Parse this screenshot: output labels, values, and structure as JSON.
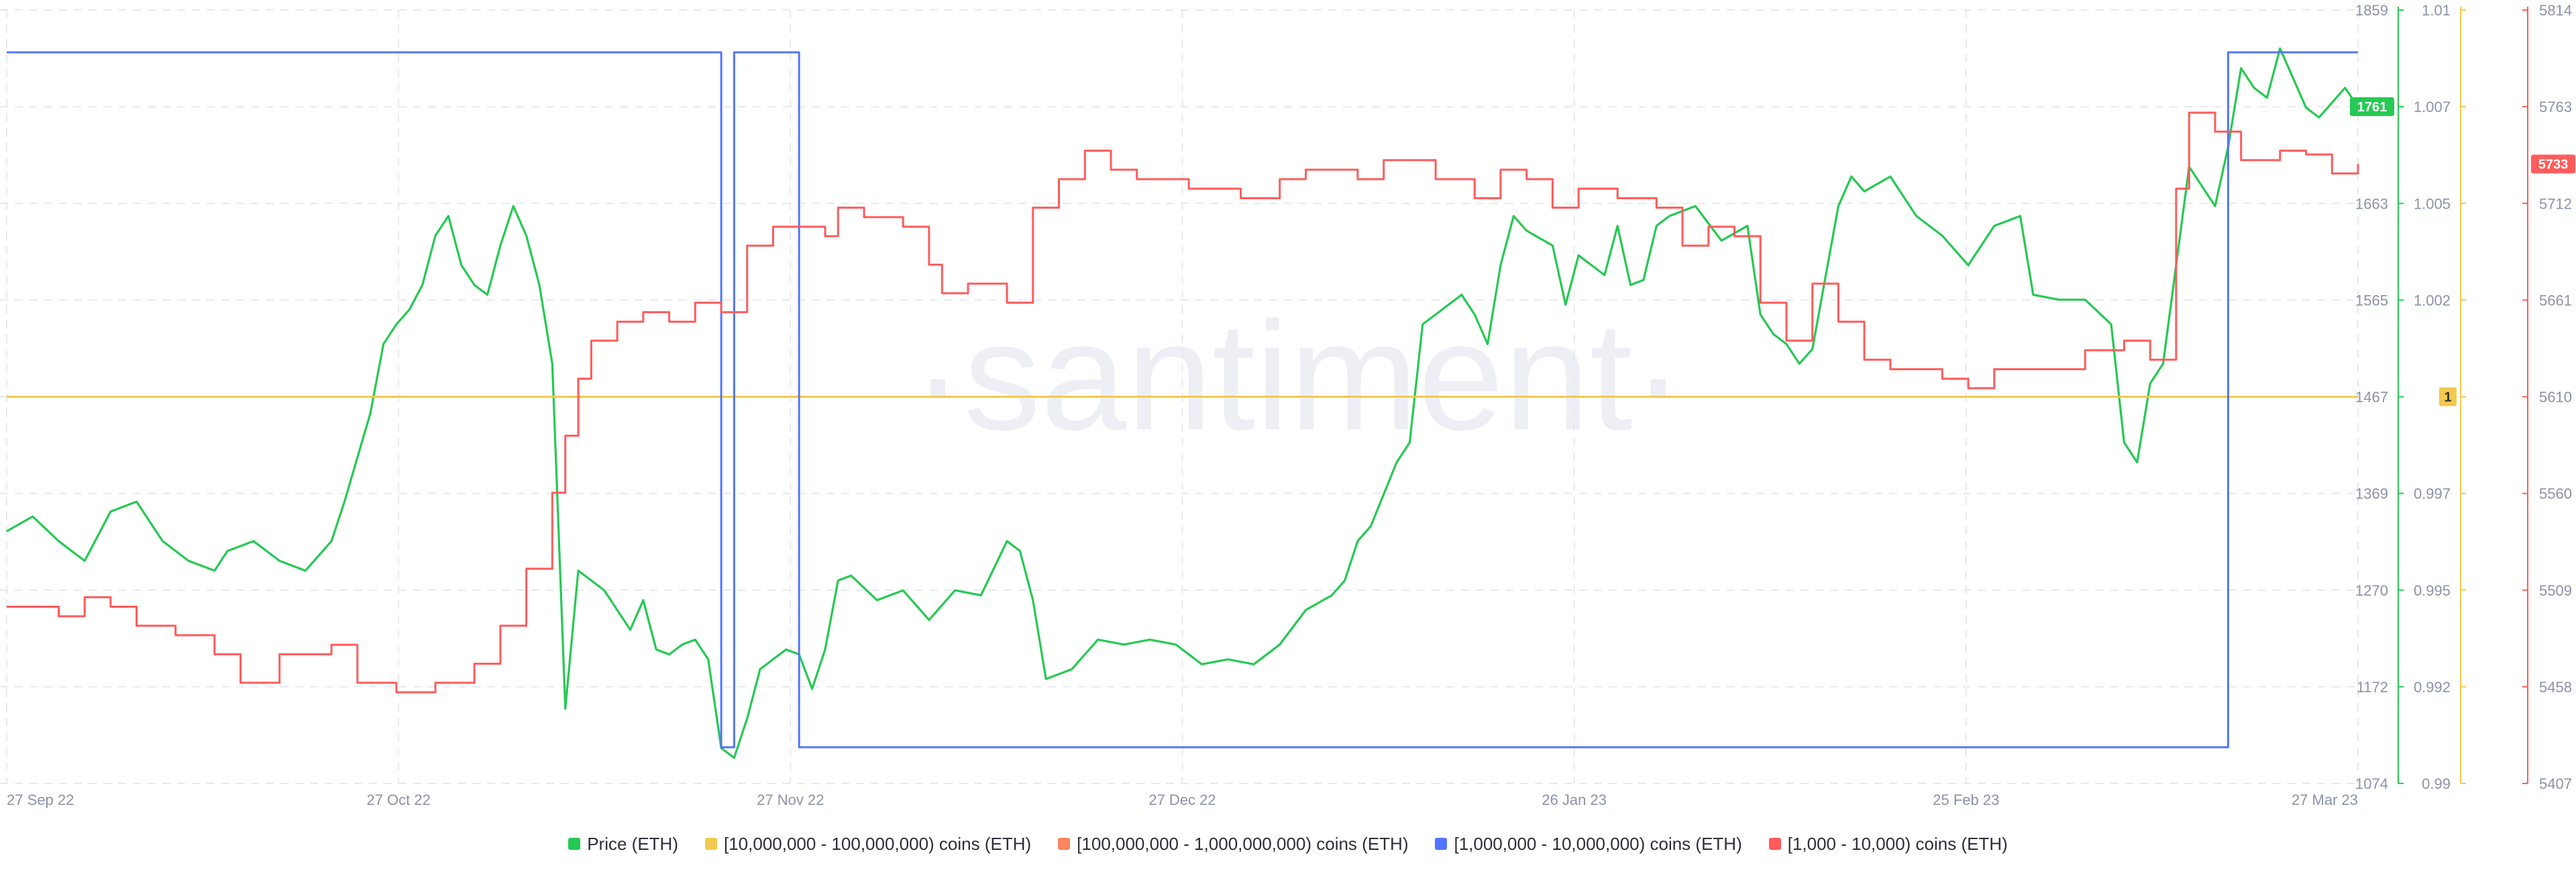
{
  "watermark": "·santiment·",
  "colors": {
    "price": "#26c953",
    "band_10m_100m": "#f2c94c",
    "band_100m_1b": "#f8865e",
    "band_1m_10m": "#5275ff",
    "band_1k_10k": "#ff5b5b",
    "grid": "#e7e9f0",
    "tick_text": "#8a93a8"
  },
  "chart_data": {
    "type": "line",
    "x_labels": [
      "27 Sep 22",
      "27 Oct 22",
      "27 Nov 22",
      "27 Dec 22",
      "26 Jan 23",
      "25 Feb 23",
      "27 Mar 23"
    ],
    "x_range": [
      "2022-09-27",
      "2023-03-27"
    ],
    "axes": {
      "price": {
        "ticks": [
          "1859",
          "1763",
          "1663",
          "1565",
          "1467",
          "1369",
          "1270",
          "1172",
          "1074"
        ],
        "range": [
          1074,
          1859
        ],
        "color": "#26c953"
      },
      "band_10m_100m": {
        "ticks": [
          "1.01",
          "1.007",
          "1.005",
          "1.002",
          "1",
          "0.997",
          "0.995",
          "0.992",
          "0.99"
        ],
        "range": [
          0.99,
          1.01
        ],
        "color": "#f2c94c"
      },
      "band_1k_10k": {
        "ticks": [
          "5814",
          "5763",
          "5712",
          "5661",
          "5610",
          "5560",
          "5509",
          "5458",
          "5407"
        ],
        "range": [
          5407,
          5814
        ],
        "color": "#ff5b5b"
      }
    },
    "badges": [
      {
        "series": "price",
        "value": "1761",
        "y": 1761
      },
      {
        "series": "band_10m_100m",
        "value": "1",
        "y": 1
      },
      {
        "series": "band_1k_10k",
        "value": "5733",
        "y": 5733
      }
    ],
    "series": [
      {
        "name": "Price (ETH)",
        "key": "price",
        "axis": "price",
        "step": false,
        "points": [
          [
            "2022-09-27",
            1330
          ],
          [
            "2022-09-29",
            1345
          ],
          [
            "2022-10-01",
            1320
          ],
          [
            "2022-10-03",
            1300
          ],
          [
            "2022-10-05",
            1350
          ],
          [
            "2022-10-07",
            1360
          ],
          [
            "2022-10-09",
            1320
          ],
          [
            "2022-10-11",
            1300
          ],
          [
            "2022-10-13",
            1290
          ],
          [
            "2022-10-14",
            1310
          ],
          [
            "2022-10-16",
            1320
          ],
          [
            "2022-10-18",
            1300
          ],
          [
            "2022-10-20",
            1290
          ],
          [
            "2022-10-22",
            1320
          ],
          [
            "2022-10-23",
            1360
          ],
          [
            "2022-10-25",
            1450
          ],
          [
            "2022-10-26",
            1520
          ],
          [
            "2022-10-27",
            1540
          ],
          [
            "2022-10-28",
            1555
          ],
          [
            "2022-10-29",
            1580
          ],
          [
            "2022-10-30",
            1630
          ],
          [
            "2022-10-31",
            1650
          ],
          [
            "2022-11-01",
            1600
          ],
          [
            "2022-11-02",
            1580
          ],
          [
            "2022-11-03",
            1570
          ],
          [
            "2022-11-04",
            1620
          ],
          [
            "2022-11-05",
            1660
          ],
          [
            "2022-11-06",
            1630
          ],
          [
            "2022-11-07",
            1580
          ],
          [
            "2022-11-08",
            1500
          ],
          [
            "2022-11-09",
            1150
          ],
          [
            "2022-11-10",
            1290
          ],
          [
            "2022-11-11",
            1280
          ],
          [
            "2022-11-12",
            1270
          ],
          [
            "2022-11-13",
            1250
          ],
          [
            "2022-11-14",
            1230
          ],
          [
            "2022-11-15",
            1260
          ],
          [
            "2022-11-16",
            1210
          ],
          [
            "2022-11-17",
            1205
          ],
          [
            "2022-11-18",
            1215
          ],
          [
            "2022-11-19",
            1220
          ],
          [
            "2022-11-20",
            1200
          ],
          [
            "2022-11-21",
            1110
          ],
          [
            "2022-11-22",
            1100
          ],
          [
            "2022-11-23",
            1140
          ],
          [
            "2022-11-24",
            1190
          ],
          [
            "2022-11-25",
            1200
          ],
          [
            "2022-11-26",
            1210
          ],
          [
            "2022-11-27",
            1205
          ],
          [
            "2022-11-28",
            1170
          ],
          [
            "2022-11-29",
            1210
          ],
          [
            "2022-11-30",
            1280
          ],
          [
            "2022-12-01",
            1285
          ],
          [
            "2022-12-03",
            1260
          ],
          [
            "2022-12-05",
            1270
          ],
          [
            "2022-12-07",
            1240
          ],
          [
            "2022-12-09",
            1270
          ],
          [
            "2022-12-11",
            1265
          ],
          [
            "2022-12-13",
            1320
          ],
          [
            "2022-12-14",
            1310
          ],
          [
            "2022-12-15",
            1260
          ],
          [
            "2022-12-16",
            1180
          ],
          [
            "2022-12-18",
            1190
          ],
          [
            "2022-12-20",
            1220
          ],
          [
            "2022-12-22",
            1215
          ],
          [
            "2022-12-24",
            1220
          ],
          [
            "2022-12-26",
            1215
          ],
          [
            "2022-12-28",
            1195
          ],
          [
            "2022-12-30",
            1200
          ],
          [
            "2023-01-01",
            1195
          ],
          [
            "2023-01-03",
            1215
          ],
          [
            "2023-01-05",
            1250
          ],
          [
            "2023-01-07",
            1265
          ],
          [
            "2023-01-08",
            1280
          ],
          [
            "2023-01-09",
            1320
          ],
          [
            "2023-01-10",
            1335
          ],
          [
            "2023-01-12",
            1400
          ],
          [
            "2023-01-13",
            1420
          ],
          [
            "2023-01-14",
            1540
          ],
          [
            "2023-01-15",
            1550
          ],
          [
            "2023-01-17",
            1570
          ],
          [
            "2023-01-18",
            1550
          ],
          [
            "2023-01-19",
            1520
          ],
          [
            "2023-01-20",
            1600
          ],
          [
            "2023-01-21",
            1650
          ],
          [
            "2023-01-22",
            1635
          ],
          [
            "2023-01-24",
            1620
          ],
          [
            "2023-01-25",
            1560
          ],
          [
            "2023-01-26",
            1610
          ],
          [
            "2023-01-27",
            1600
          ],
          [
            "2023-01-28",
            1590
          ],
          [
            "2023-01-29",
            1640
          ],
          [
            "2023-01-30",
            1580
          ],
          [
            "2023-01-31",
            1585
          ],
          [
            "2023-02-01",
            1640
          ],
          [
            "2023-02-02",
            1650
          ],
          [
            "2023-02-04",
            1660
          ],
          [
            "2023-02-06",
            1625
          ],
          [
            "2023-02-08",
            1640
          ],
          [
            "2023-02-09",
            1550
          ],
          [
            "2023-02-10",
            1530
          ],
          [
            "2023-02-11",
            1520
          ],
          [
            "2023-02-12",
            1500
          ],
          [
            "2023-02-13",
            1515
          ],
          [
            "2023-02-15",
            1660
          ],
          [
            "2023-02-16",
            1690
          ],
          [
            "2023-02-17",
            1675
          ],
          [
            "2023-02-19",
            1690
          ],
          [
            "2023-02-21",
            1650
          ],
          [
            "2023-02-23",
            1630
          ],
          [
            "2023-02-25",
            1600
          ],
          [
            "2023-02-27",
            1640
          ],
          [
            "2023-03-01",
            1650
          ],
          [
            "2023-03-02",
            1570
          ],
          [
            "2023-03-04",
            1565
          ],
          [
            "2023-03-06",
            1565
          ],
          [
            "2023-03-08",
            1540
          ],
          [
            "2023-03-09",
            1420
          ],
          [
            "2023-03-10",
            1400
          ],
          [
            "2023-03-11",
            1480
          ],
          [
            "2023-03-12",
            1500
          ],
          [
            "2023-03-13",
            1600
          ],
          [
            "2023-03-14",
            1700
          ],
          [
            "2023-03-15",
            1680
          ],
          [
            "2023-03-16",
            1660
          ],
          [
            "2023-03-17",
            1720
          ],
          [
            "2023-03-18",
            1800
          ],
          [
            "2023-03-19",
            1780
          ],
          [
            "2023-03-20",
            1770
          ],
          [
            "2023-03-21",
            1820
          ],
          [
            "2023-03-22",
            1790
          ],
          [
            "2023-03-23",
            1760
          ],
          [
            "2023-03-24",
            1750
          ],
          [
            "2023-03-25",
            1765
          ],
          [
            "2023-03-26",
            1780
          ],
          [
            "2023-03-27",
            1761
          ]
        ]
      },
      {
        "name": "[10,000,000 - 100,000,000) coins (ETH)",
        "key": "band_10m_100m",
        "axis": "band_10m_100m",
        "step": true,
        "points": [
          [
            "2022-09-27",
            1
          ],
          [
            "2023-03-27",
            1
          ]
        ]
      },
      {
        "name": "[100,000,000 - 1,000,000,000) coins (ETH)",
        "key": "band_100m_1b",
        "axis": null,
        "step": true,
        "points": []
      },
      {
        "name": "[1,000,000 - 10,000,000) coins (ETH)",
        "key": "band_1m_10m",
        "axis": null,
        "step": true,
        "points": [
          [
            "2022-09-27",
            "high"
          ],
          [
            "2022-11-21",
            "high"
          ],
          [
            "2022-11-21",
            "low"
          ],
          [
            "2022-11-22",
            "low"
          ],
          [
            "2022-11-22",
            "high"
          ],
          [
            "2022-11-27",
            "high"
          ],
          [
            "2022-11-27",
            "low"
          ],
          [
            "2023-03-17",
            "low"
          ],
          [
            "2023-03-17",
            "high"
          ],
          [
            "2023-03-27",
            "high"
          ]
        ]
      },
      {
        "name": "[1,000 - 10,000) coins (ETH)",
        "key": "band_1k_10k",
        "axis": "band_1k_10k",
        "step": true,
        "points": [
          [
            "2022-09-27",
            5500
          ],
          [
            "2022-10-01",
            5495
          ],
          [
            "2022-10-03",
            5505
          ],
          [
            "2022-10-05",
            5500
          ],
          [
            "2022-10-07",
            5490
          ],
          [
            "2022-10-10",
            5485
          ],
          [
            "2022-10-13",
            5475
          ],
          [
            "2022-10-15",
            5460
          ],
          [
            "2022-10-18",
            5475
          ],
          [
            "2022-10-22",
            5480
          ],
          [
            "2022-10-24",
            5460
          ],
          [
            "2022-10-27",
            5455
          ],
          [
            "2022-10-30",
            5460
          ],
          [
            "2022-11-02",
            5470
          ],
          [
            "2022-11-04",
            5490
          ],
          [
            "2022-11-06",
            5520
          ],
          [
            "2022-11-08",
            5560
          ],
          [
            "2022-11-09",
            5590
          ],
          [
            "2022-11-10",
            5620
          ],
          [
            "2022-11-11",
            5640
          ],
          [
            "2022-11-13",
            5650
          ],
          [
            "2022-11-15",
            5655
          ],
          [
            "2022-11-17",
            5650
          ],
          [
            "2022-11-19",
            5660
          ],
          [
            "2022-11-21",
            5655
          ],
          [
            "2022-11-23",
            5690
          ],
          [
            "2022-11-25",
            5700
          ],
          [
            "2022-11-29",
            5695
          ],
          [
            "2022-11-30",
            5710
          ],
          [
            "2022-12-02",
            5705
          ],
          [
            "2022-12-05",
            5700
          ],
          [
            "2022-12-07",
            5680
          ],
          [
            "2022-12-08",
            5665
          ],
          [
            "2022-12-10",
            5670
          ],
          [
            "2022-12-13",
            5660
          ],
          [
            "2022-12-15",
            5710
          ],
          [
            "2022-12-17",
            5725
          ],
          [
            "2022-12-19",
            5740
          ],
          [
            "2022-12-21",
            5730
          ],
          [
            "2022-12-23",
            5725
          ],
          [
            "2022-12-27",
            5720
          ],
          [
            "2022-12-31",
            5715
          ],
          [
            "2023-01-03",
            5725
          ],
          [
            "2023-01-05",
            5730
          ],
          [
            "2023-01-09",
            5725
          ],
          [
            "2023-01-11",
            5735
          ],
          [
            "2023-01-15",
            5725
          ],
          [
            "2023-01-18",
            5715
          ],
          [
            "2023-01-20",
            5730
          ],
          [
            "2023-01-22",
            5725
          ],
          [
            "2023-01-24",
            5710
          ],
          [
            "2023-01-26",
            5720
          ],
          [
            "2023-01-29",
            5715
          ],
          [
            "2023-02-01",
            5710
          ],
          [
            "2023-02-03",
            5690
          ],
          [
            "2023-02-05",
            5700
          ],
          [
            "2023-02-07",
            5695
          ],
          [
            "2023-02-09",
            5660
          ],
          [
            "2023-02-11",
            5640
          ],
          [
            "2023-02-13",
            5670
          ],
          [
            "2023-02-15",
            5650
          ],
          [
            "2023-02-17",
            5630
          ],
          [
            "2023-02-19",
            5625
          ],
          [
            "2023-02-23",
            5620
          ],
          [
            "2023-02-25",
            5615
          ],
          [
            "2023-02-27",
            5625
          ],
          [
            "2023-03-03",
            5625
          ],
          [
            "2023-03-06",
            5635
          ],
          [
            "2023-03-09",
            5640
          ],
          [
            "2023-03-11",
            5630
          ],
          [
            "2023-03-13",
            5720
          ],
          [
            "2023-03-14",
            5760
          ],
          [
            "2023-03-16",
            5750
          ],
          [
            "2023-03-18",
            5735
          ],
          [
            "2023-03-21",
            5740
          ],
          [
            "2023-03-23",
            5738
          ],
          [
            "2023-03-25",
            5728
          ],
          [
            "2023-03-27",
            5733
          ]
        ]
      }
    ],
    "legend": [
      {
        "label": "Price (ETH)",
        "color": "#26c953"
      },
      {
        "label": "[10,000,000 - 100,000,000) coins (ETH)",
        "color": "#f2c94c"
      },
      {
        "label": "[100,000,000 - 1,000,000,000) coins (ETH)",
        "color": "#f8865e"
      },
      {
        "label": "[1,000,000 - 10,000,000) coins (ETH)",
        "color": "#5275ff"
      },
      {
        "label": "[1,000 - 10,000) coins (ETH)",
        "color": "#ff5b5b"
      }
    ],
    "legend_position": "bottom-center",
    "grid": true
  }
}
